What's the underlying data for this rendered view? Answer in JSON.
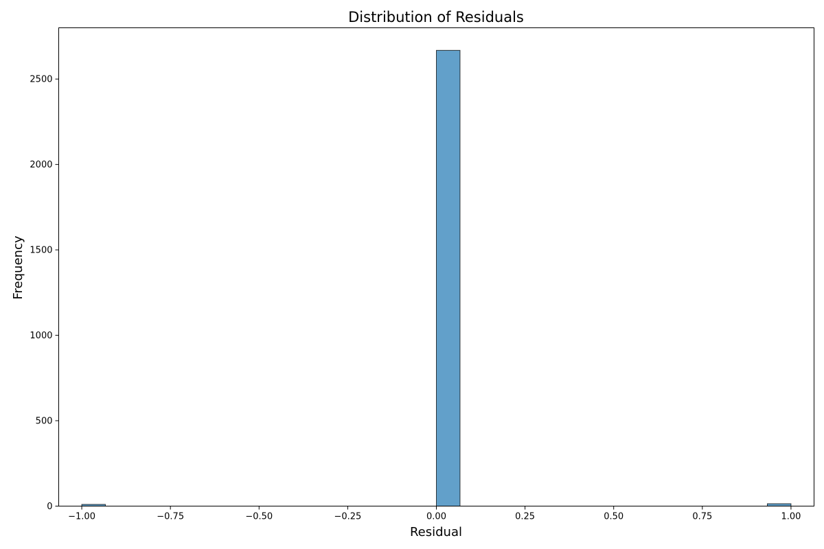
{
  "chart_data": {
    "type": "bar",
    "title": "Distribution of Residuals",
    "xlabel": "Residual",
    "ylabel": "Frequency",
    "xlim": [
      -1.065,
      1.065
    ],
    "ylim": [
      0,
      2800
    ],
    "xticks": [
      -1.0,
      -0.75,
      -0.5,
      -0.25,
      0.0,
      0.25,
      0.5,
      0.75,
      1.0
    ],
    "xtick_labels": [
      "−1.00",
      "−0.75",
      "−0.50",
      "−0.25",
      "0.00",
      "0.25",
      "0.50",
      "0.75",
      "1.00"
    ],
    "yticks": [
      0,
      500,
      1000,
      1500,
      2000,
      2500
    ],
    "ytick_labels": [
      "0",
      "500",
      "1000",
      "1500",
      "2000",
      "2500"
    ],
    "bins": [
      {
        "x0": -1.0,
        "x1": -0.9333,
        "value": 10
      },
      {
        "x0": 0.0,
        "x1": 0.0667,
        "value": 2668
      },
      {
        "x0": 0.9333,
        "x1": 1.0,
        "value": 14
      }
    ],
    "bar_color": "#1f77b4",
    "bar_opacity": 0.7,
    "edge_color": "#000000",
    "grid": false,
    "legend": null
  }
}
